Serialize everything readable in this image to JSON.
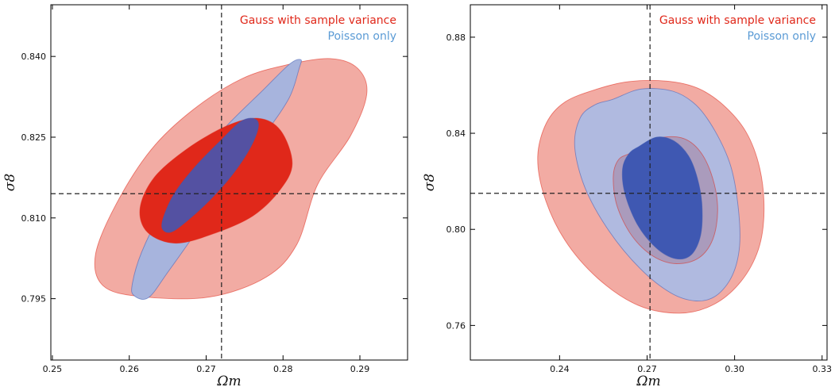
{
  "chart_data": [
    {
      "type": "contour",
      "xlabel": "Ωm",
      "ylabel": "σ8",
      "xlim": [
        0.2498,
        0.2962
      ],
      "ylim": [
        0.7836,
        0.8496
      ],
      "xticks": [
        "0.25",
        "0.26",
        "0.27",
        "0.28",
        "0.29"
      ],
      "yticks": [
        "0.795",
        "0.810",
        "0.825",
        "0.840"
      ],
      "xtick_values": [
        0.25,
        0.26,
        0.27,
        0.28,
        0.29
      ],
      "ytick_values": [
        0.795,
        0.81,
        0.825,
        0.84
      ],
      "fiducial": {
        "x": 0.272,
        "y": 0.8145
      },
      "legend_position": "top-right",
      "series": [
        {
          "name": "Gauss with sample variance",
          "color": "#e0281a",
          "contours": [
            {
              "level": "outer",
              "fill": "#f2aba3",
              "points": [
                [
                  0.2704,
                  0.7953
                ],
                [
                  0.2778,
                  0.799
                ],
                [
                  0.2818,
                  0.8051
                ],
                [
                  0.2845,
                  0.8162
                ],
                [
                  0.2888,
                  0.8253
                ],
                [
                  0.2909,
                  0.8331
                ],
                [
                  0.2897,
                  0.8378
                ],
                [
                  0.2862,
                  0.8396
                ],
                [
                  0.2807,
                  0.8385
                ],
                [
                  0.2747,
                  0.8359
                ],
                [
                  0.2683,
                  0.8301
                ],
                [
                  0.2628,
                  0.8226
                ],
                [
                  0.2582,
                  0.8123
                ],
                [
                  0.2556,
                  0.8031
                ],
                [
                  0.2566,
                  0.7974
                ],
                [
                  0.2614,
                  0.7954
                ]
              ]
            },
            {
              "level": "inner",
              "fill": "#e0281a",
              "points": [
                [
                  0.2661,
                  0.8053
                ],
                [
                  0.2712,
                  0.8072
                ],
                [
                  0.2761,
                  0.8104
                ],
                [
                  0.2796,
                  0.8152
                ],
                [
                  0.2812,
                  0.8201
                ],
                [
                  0.2797,
                  0.8262
                ],
                [
                  0.2768,
                  0.8285
                ],
                [
                  0.2727,
                  0.8271
                ],
                [
                  0.2676,
                  0.8229
                ],
                [
                  0.2633,
                  0.8176
                ],
                [
                  0.2614,
                  0.8118
                ],
                [
                  0.2624,
                  0.8073
                ]
              ]
            }
          ]
        },
        {
          "name": "Poisson only",
          "color": "#3d59b3",
          "contours": [
            {
              "level": "outer",
              "fill": "#a7b4dd",
              "points": [
                [
                  0.2625,
                  0.7952
                ],
                [
                  0.2651,
                  0.8001
                ],
                [
                  0.2688,
                  0.8076
                ],
                [
                  0.2732,
                  0.8172
                ],
                [
                  0.2776,
                  0.8255
                ],
                [
                  0.2808,
                  0.8323
                ],
                [
                  0.2821,
                  0.8378
                ],
                [
                  0.2823,
                  0.8394
                ],
                [
                  0.2808,
                  0.8385
                ],
                [
                  0.2773,
                  0.8336
                ],
                [
                  0.2722,
                  0.8264
                ],
                [
                  0.2678,
                  0.8186
                ],
                [
                  0.2641,
                  0.8108
                ],
                [
                  0.2616,
                  0.8036
                ],
                [
                  0.2604,
                  0.7978
                ],
                [
                  0.2606,
                  0.7956
                ]
              ]
            },
            {
              "level": "inner",
              "fill": "#5451a2",
              "points": [
                [
                  0.2655,
                  0.8074
                ],
                [
                  0.2678,
                  0.8098
                ],
                [
                  0.2706,
                  0.8135
                ],
                [
                  0.2735,
                  0.8182
                ],
                [
                  0.2758,
                  0.8232
                ],
                [
                  0.2768,
                  0.8271
                ],
                [
                  0.2761,
                  0.8285
                ],
                [
                  0.2744,
                  0.8278
                ],
                [
                  0.2719,
                  0.8244
                ],
                [
                  0.2685,
                  0.8194
                ],
                [
                  0.2659,
                  0.8146
                ],
                [
                  0.2645,
                  0.8103
                ],
                [
                  0.2643,
                  0.808
                ]
              ]
            }
          ]
        }
      ]
    },
    {
      "type": "contour",
      "xlabel": "Ωm",
      "ylabel": "σ8",
      "xlim": [
        0.2094,
        0.3317
      ],
      "ylim": [
        0.7456,
        0.8935
      ],
      "xticks": [
        "0.24",
        "0.27",
        "0.30",
        "0.33"
      ],
      "yticks": [
        "0.76",
        "0.80",
        "0.84",
        "0.88"
      ],
      "xtick_values": [
        0.24,
        0.27,
        0.3,
        0.33
      ],
      "ytick_values": [
        0.76,
        0.8,
        0.84,
        0.88
      ],
      "fiducial": {
        "x": 0.271,
        "y": 0.815
      },
      "legend_position": "top-right",
      "series": [
        {
          "name": "Gauss with sample variance",
          "color": "#e0281a",
          "contours": [
            {
              "level": "outer",
              "fill": "#f2aba3",
              "points": [
                [
                  0.2526,
                  0.8583
                ],
                [
                  0.2637,
                  0.8615
                ],
                [
                  0.2768,
                  0.8617
                ],
                [
                  0.2873,
                  0.8588
                ],
                [
                  0.2961,
                  0.8518
                ],
                [
                  0.3039,
                  0.8406
                ],
                [
                  0.3086,
                  0.8255
                ],
                [
                  0.3101,
                  0.8078
                ],
                [
                  0.3082,
                  0.7918
                ],
                [
                  0.3021,
                  0.7782
                ],
                [
                  0.2928,
                  0.7687
                ],
                [
                  0.2812,
                  0.7651
                ],
                [
                  0.2669,
                  0.7684
                ],
                [
                  0.2531,
                  0.7796
                ],
                [
                  0.2418,
                  0.7955
                ],
                [
                  0.2348,
                  0.8136
                ],
                [
                  0.2325,
                  0.8302
                ],
                [
                  0.2355,
                  0.8443
                ],
                [
                  0.2418,
                  0.853
                ]
              ]
            },
            {
              "level": "inner",
              "fill": "#aa9bbc",
              "points": [
                [
                  0.2645,
                  0.8319
                ],
                [
                  0.2728,
                  0.8376
                ],
                [
                  0.2818,
                  0.8381
                ],
                [
                  0.2882,
                  0.8324
                ],
                [
                  0.2925,
                  0.8212
                ],
                [
                  0.2942,
                  0.8081
                ],
                [
                  0.2925,
                  0.7958
                ],
                [
                  0.2877,
                  0.7881
                ],
                [
                  0.2801,
                  0.7857
                ],
                [
                  0.2721,
                  0.7888
                ],
                [
                  0.2648,
                  0.7973
                ],
                [
                  0.2597,
                  0.8097
                ],
                [
                  0.2584,
                  0.8219
                ],
                [
                  0.2602,
                  0.829
                ]
              ]
            }
          ]
        },
        {
          "name": "Poisson only",
          "color": "#3d59b3",
          "contours": [
            {
              "level": "outer",
              "fill": "#b0bae0",
              "points": [
                [
                  0.2582,
                  0.8541
                ],
                [
                  0.2679,
                  0.8584
                ],
                [
                  0.2788,
                  0.8575
                ],
                [
                  0.2868,
                  0.8517
                ],
                [
                  0.2932,
                  0.8411
                ],
                [
                  0.2986,
                  0.8266
                ],
                [
                  0.3012,
                  0.8097
                ],
                [
                  0.3017,
                  0.7931
                ],
                [
                  0.2992,
                  0.7808
                ],
                [
                  0.2937,
                  0.7724
                ],
                [
                  0.2868,
                  0.7702
                ],
                [
                  0.2782,
                  0.7735
                ],
                [
                  0.2676,
                  0.7837
                ],
                [
                  0.2569,
                  0.7994
                ],
                [
                  0.2488,
                  0.8171
                ],
                [
                  0.2452,
                  0.8343
                ],
                [
                  0.2471,
                  0.8465
                ],
                [
                  0.2522,
                  0.8519
                ]
              ]
            },
            {
              "level": "inner",
              "fill": "#3f58b2",
              "points": [
                [
                  0.2672,
                  0.8345
                ],
                [
                  0.2733,
                  0.8384
                ],
                [
                  0.2792,
                  0.8368
                ],
                [
                  0.2842,
                  0.8306
                ],
                [
                  0.2872,
                  0.8215
                ],
                [
                  0.2888,
                  0.8104
                ],
                [
                  0.2884,
                  0.7978
                ],
                [
                  0.2852,
                  0.7895
                ],
                [
                  0.2798,
                  0.7878
                ],
                [
                  0.2731,
                  0.7923
                ],
                [
                  0.2666,
                  0.8022
                ],
                [
                  0.2624,
                  0.8149
                ],
                [
                  0.2616,
                  0.8252
                ],
                [
                  0.2637,
                  0.8314
                ]
              ]
            }
          ]
        }
      ]
    }
  ],
  "legend_colors": {
    "gauss": "#e0281a",
    "poisson": "#5b9bd5"
  }
}
